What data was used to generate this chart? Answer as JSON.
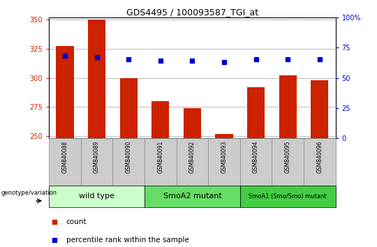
{
  "title": "GDS4495 / 100093587_TGI_at",
  "samples": [
    "GSM840088",
    "GSM840089",
    "GSM840090",
    "GSM840091",
    "GSM840092",
    "GSM840093",
    "GSM840094",
    "GSM840095",
    "GSM840096"
  ],
  "counts": [
    327,
    350,
    300,
    280,
    274,
    252,
    292,
    302,
    298
  ],
  "percentile_ranks": [
    68,
    67,
    65,
    64,
    64,
    63,
    65,
    65,
    65
  ],
  "y_min": 248,
  "y_max": 352,
  "y_left_ticks": [
    250,
    275,
    300,
    325,
    350
  ],
  "y_right_ticks": [
    0,
    25,
    50,
    75,
    100
  ],
  "bar_color": "#cc2200",
  "dot_color": "#0000cc",
  "bar_bottom": 248,
  "groups": [
    {
      "label": "wild type",
      "start": 0,
      "end": 3,
      "color": "#ccffcc"
    },
    {
      "label": "SmoA2 mutant",
      "start": 3,
      "end": 6,
      "color": "#66dd66"
    },
    {
      "label": "SmoA1 (Smo/Smo) mutant",
      "start": 6,
      "end": 9,
      "color": "#44cc44"
    }
  ],
  "legend_count_label": "count",
  "legend_pct_label": "percentile rank within the sample",
  "genotype_label": "genotype/variation",
  "background_color": "#ffffff",
  "tick_label_color_left": "#cc2200",
  "tick_label_color_right": "#0000cc",
  "sample_box_color": "#cccccc"
}
